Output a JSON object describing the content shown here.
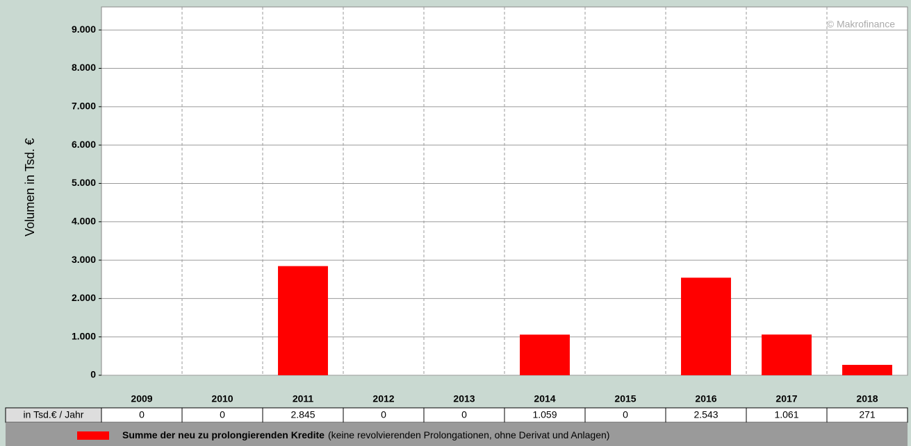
{
  "chart_data": {
    "type": "bar",
    "y_label": "Volumen in Tsd. €",
    "watermark": "© Makrofinance",
    "categories": [
      "2009",
      "2010",
      "2011",
      "2012",
      "2013",
      "2014",
      "2015",
      "2016",
      "2017",
      "2018"
    ],
    "series": [
      {
        "name": "Summe der neu zu prolongierenden Kredite",
        "color": "#ff0000",
        "values": [
          0,
          0,
          2845,
          0,
          0,
          1059,
          0,
          2543,
          1061,
          271
        ],
        "value_labels": [
          "0",
          "0",
          "2.845",
          "0",
          "0",
          "1.059",
          "0",
          "2.543",
          "1.061",
          "271"
        ]
      }
    ],
    "legend_note": "(keine revolvierenden Prolongationen, ohne Derivat und Anlagen)",
    "table_row_label": "in Tsd.€ / Jahr",
    "ylim": [
      0,
      9600
    ],
    "yticks": [
      0,
      {
        "value": 1000,
        "label": "1.000"
      },
      {
        "value": 2000,
        "label": "2.000"
      },
      {
        "value": 3000,
        "label": "3.000"
      },
      {
        "value": 4000,
        "label": "4.000"
      },
      {
        "value": 5000,
        "label": "5.000"
      },
      {
        "value": 6000,
        "label": "6.000"
      },
      {
        "value": 7000,
        "label": "7.000"
      },
      {
        "value": 8000,
        "label": "8.000"
      },
      {
        "value": 9000,
        "label": "9.000"
      }
    ],
    "grid": true
  }
}
